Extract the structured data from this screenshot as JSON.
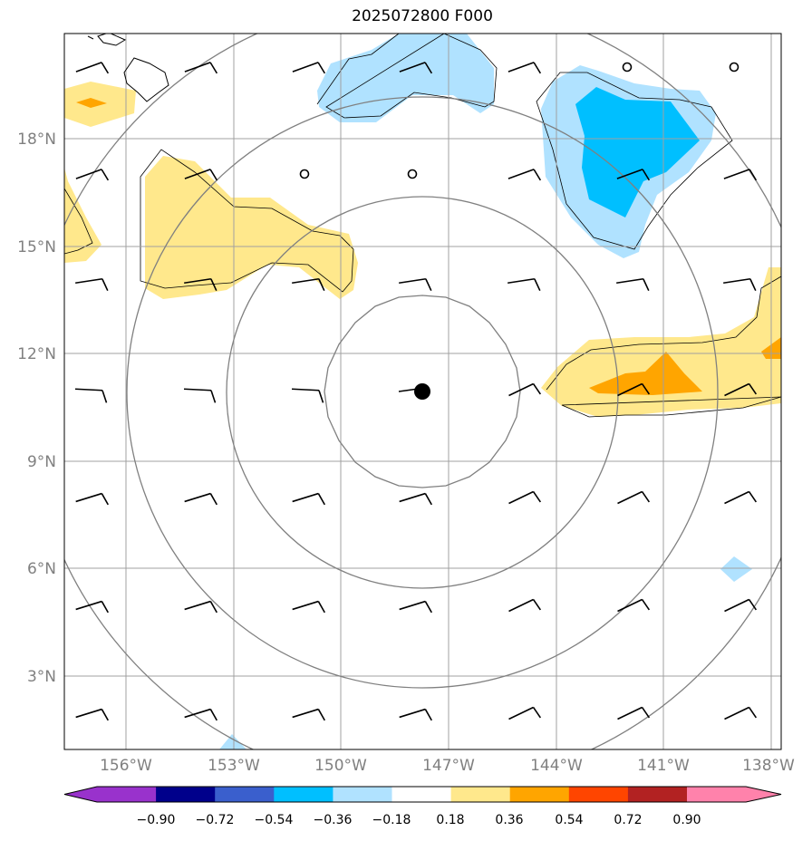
{
  "title": "2025072800 F000",
  "axes": {
    "x_ticks": [
      "156°W",
      "153°W",
      "150°W",
      "147°W",
      "144°W",
      "141°W",
      "138°W"
    ],
    "y_ticks": [
      "18°N",
      "15°N",
      "12°N",
      "9°N",
      "6°N",
      "3°N"
    ]
  },
  "colorbar": {
    "labels": [
      "−0.90",
      "−0.72",
      "−0.54",
      "−0.36",
      "−0.18",
      "0.18",
      "0.36",
      "0.54",
      "0.72",
      "0.90"
    ],
    "colors": [
      "#9932cc",
      "#00008b",
      "#3a5fcd",
      "#00bfff",
      "#b0e2ff",
      "#ffffff",
      "#ffe88c",
      "#ffa500",
      "#ff4500",
      "#b22222",
      "#ff82ab"
    ]
  },
  "shading_colors": {
    "light_blue": "#b0e2ff",
    "blue": "#00bfff",
    "light_yellow": "#ffe88c",
    "orange": "#ffa500"
  },
  "storm_center": {
    "lon": -147.7,
    "lat": 10.9
  }
}
